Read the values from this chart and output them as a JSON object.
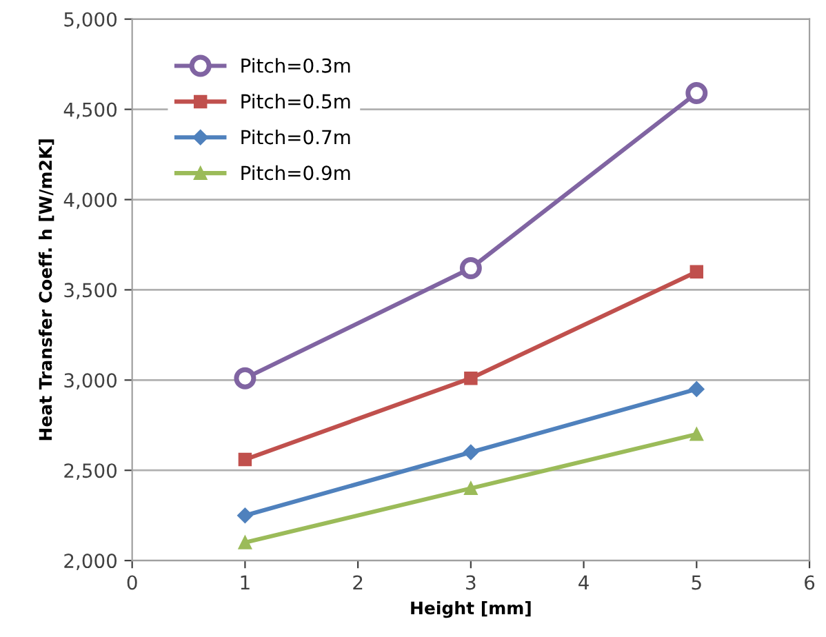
{
  "chart_data": {
    "type": "line",
    "xlabel": "Height [mm]",
    "ylabel": "Heat Transfer Coeff. h [W/m2K]",
    "xlim": [
      0,
      6
    ],
    "xticks": [
      0,
      1,
      2,
      3,
      4,
      5,
      6
    ],
    "ylim": [
      2000,
      5000
    ],
    "yticks": [
      {
        "value": 2000,
        "label": "2,000"
      },
      {
        "value": 2500,
        "label": "2,500"
      },
      {
        "value": 3000,
        "label": "3,000"
      },
      {
        "value": 3500,
        "label": "3,500"
      },
      {
        "value": 4000,
        "label": "4,000"
      },
      {
        "value": 4500,
        "label": "4,500"
      },
      {
        "value": 5000,
        "label": "5,000"
      }
    ],
    "grid": "y",
    "legend": "top left",
    "line_style": "solid",
    "x": [
      1,
      3,
      5
    ],
    "series": [
      {
        "name": "Pitch=0.3m",
        "color": "#8064a2",
        "marker": "circle",
        "values": [
          3010,
          3620,
          4590
        ]
      },
      {
        "name": "Pitch=0.5m",
        "color": "#c0504d",
        "marker": "square",
        "values": [
          2560,
          3010,
          3600
        ]
      },
      {
        "name": "Pitch=0.7m",
        "color": "#4f81bd",
        "marker": "diamond",
        "values": [
          2250,
          2600,
          2950
        ]
      },
      {
        "name": "Pitch=0.9m",
        "color": "#9bbb59",
        "marker": "triangle",
        "values": [
          2100,
          2400,
          2700
        ]
      }
    ]
  }
}
